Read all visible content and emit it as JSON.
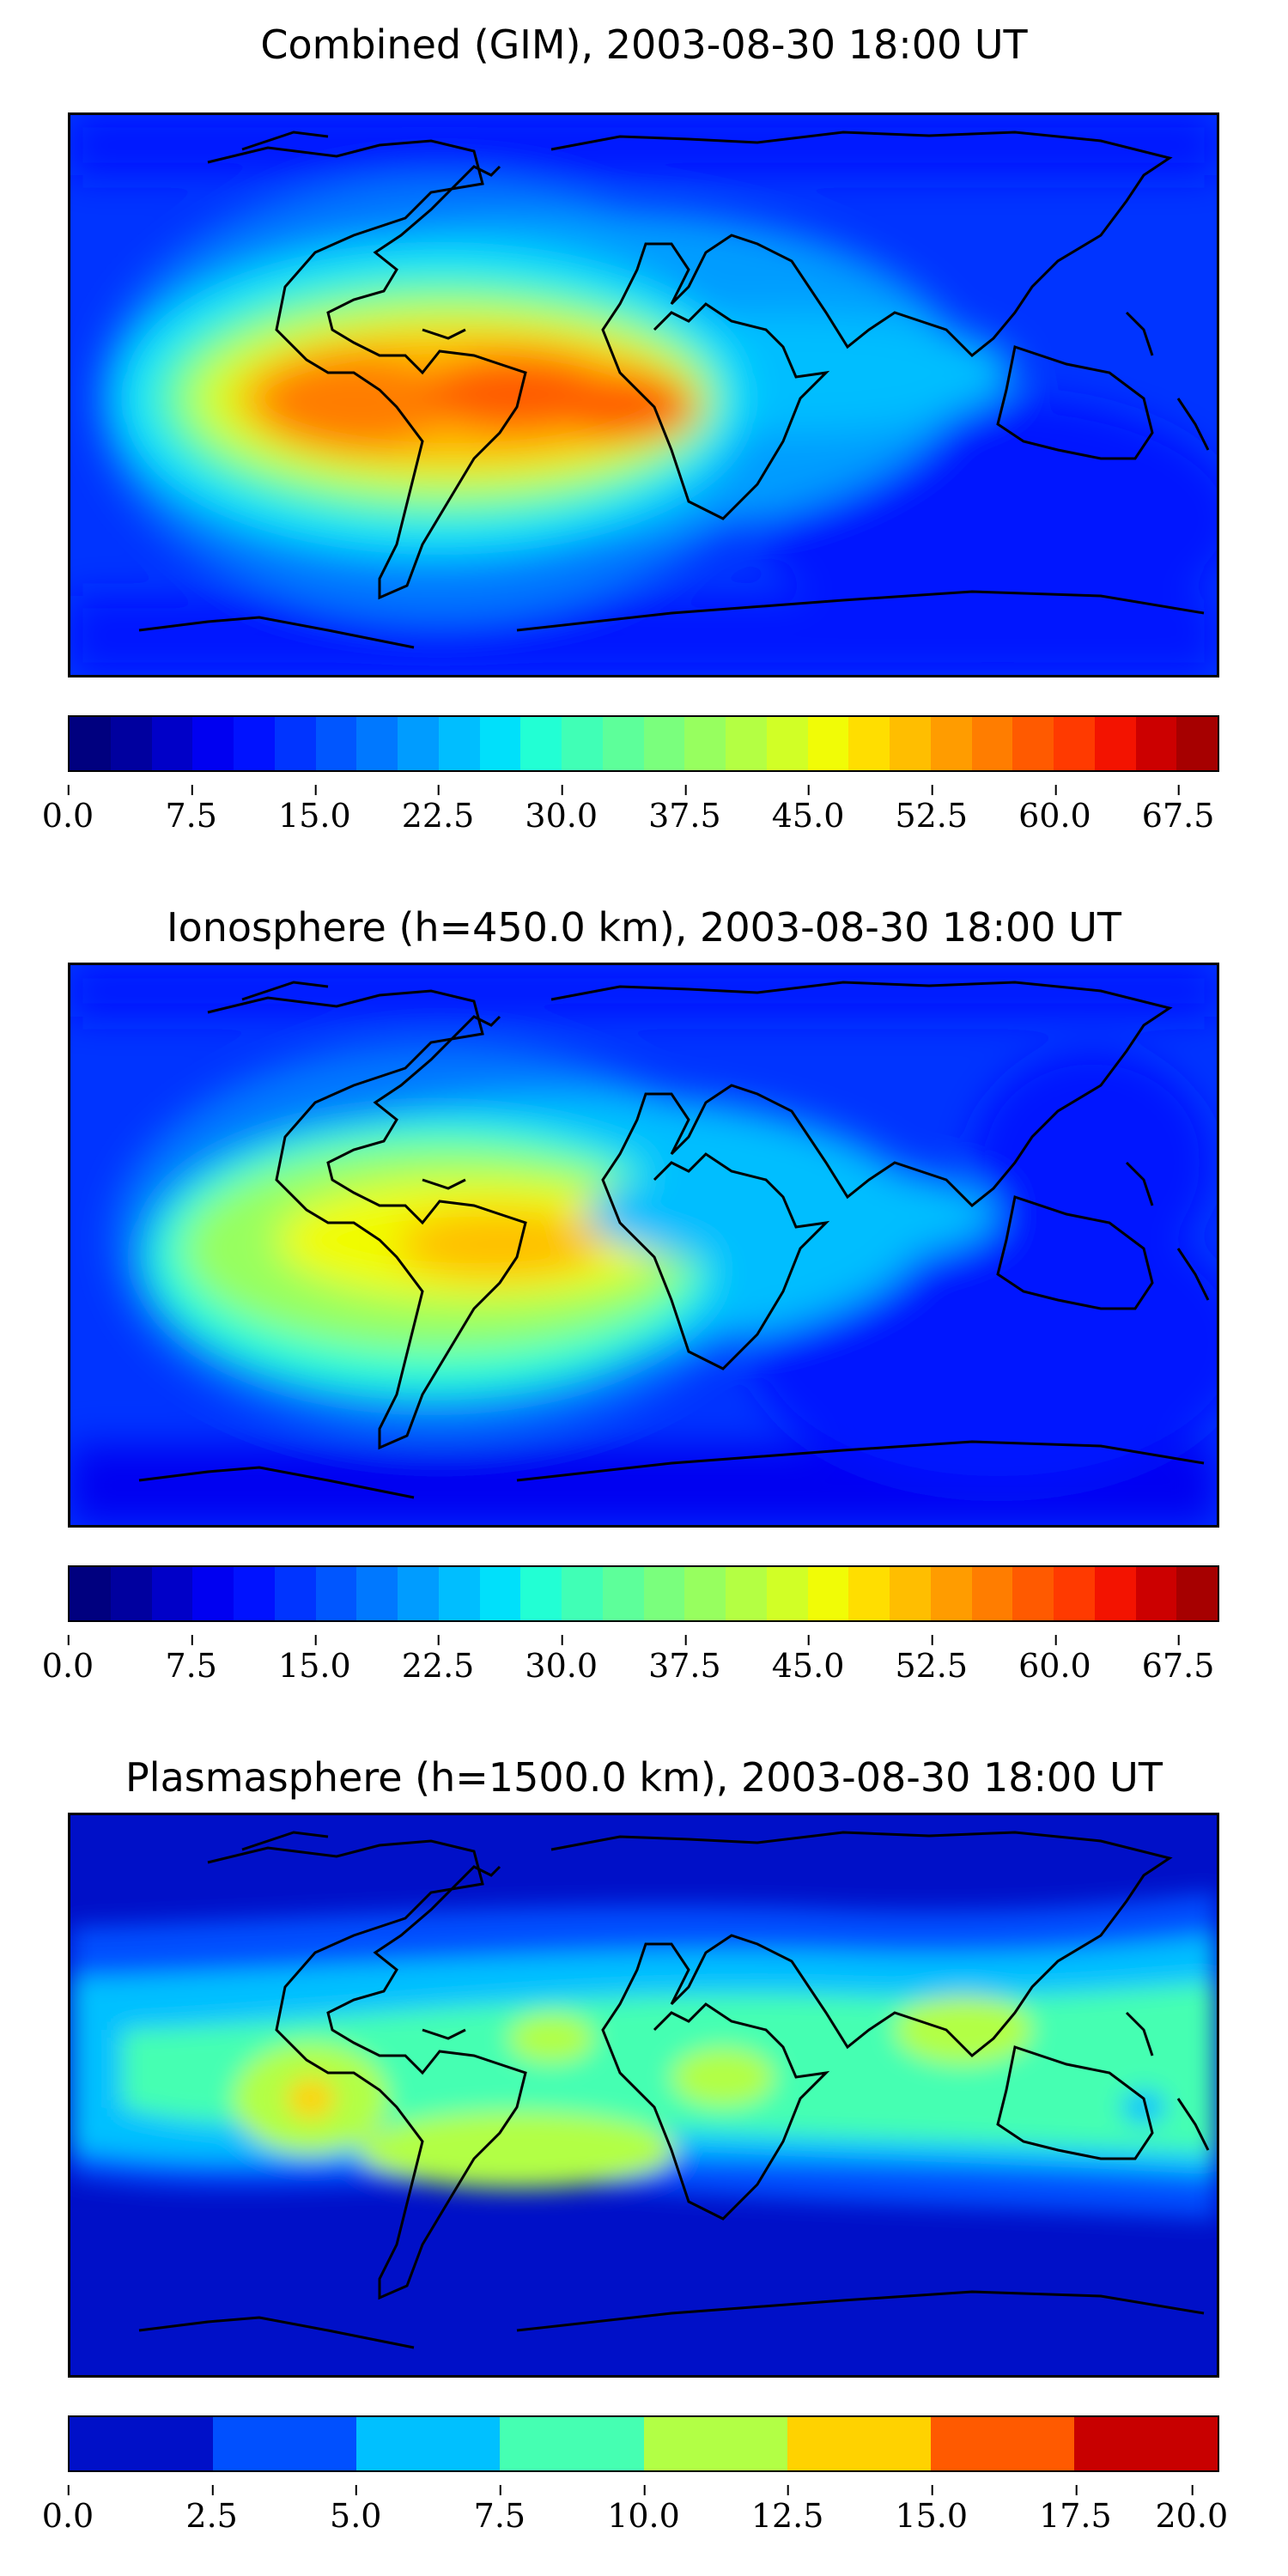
{
  "panels": [
    {
      "title": "Combined (GIM), 2003-08-30 18:00 UT",
      "scale": "fine",
      "colorbar": {
        "min": 0.0,
        "max": 70.0,
        "ticks": [
          "0.0",
          "7.5",
          "15.0",
          "22.5",
          "30.0",
          "37.5",
          "45.0",
          "52.5",
          "60.0",
          "67.5"
        ]
      }
    },
    {
      "title": "Ionosphere  (h=450.0 km), 2003-08-30 18:00 UT",
      "scale": "fine",
      "colorbar": {
        "min": 0.0,
        "max": 70.0,
        "ticks": [
          "0.0",
          "7.5",
          "15.0",
          "22.5",
          "30.0",
          "37.5",
          "45.0",
          "52.5",
          "60.0",
          "67.5"
        ]
      }
    },
    {
      "title": "Plasmasphere (h=1500.0 km), 2003-08-30 18:00 UT",
      "scale": "coarse",
      "colorbar": {
        "min": 0.0,
        "max": 20.0,
        "ticks": [
          "0.0",
          "2.5",
          "5.0",
          "7.5",
          "10.0",
          "12.5",
          "15.0",
          "17.5",
          "20.0"
        ]
      }
    }
  ],
  "colors": {
    "fine_scale": [
      "#00007f",
      "#00009f",
      "#0000c8",
      "#0000f1",
      "#0012ff",
      "#0034ff",
      "#0056ff",
      "#0078ff",
      "#009cff",
      "#00beff",
      "#00e0fb",
      "#22ffd4",
      "#40ffb6",
      "#5dff9a",
      "#7aff7d",
      "#97ff5f",
      "#b4ff43",
      "#d1ff26",
      "#f1fc06",
      "#ffde00",
      "#ffbe00",
      "#ff9c00",
      "#ff7d00",
      "#ff5a00",
      "#ff3a00",
      "#f31300",
      "#cc0000",
      "#a60000"
    ],
    "coarse_scale": [
      "#0010c8",
      "#0050ff",
      "#00c0ff",
      "#45ffb2",
      "#b2ff45",
      "#ffd200",
      "#ff5a00",
      "#c80000"
    ]
  }
}
